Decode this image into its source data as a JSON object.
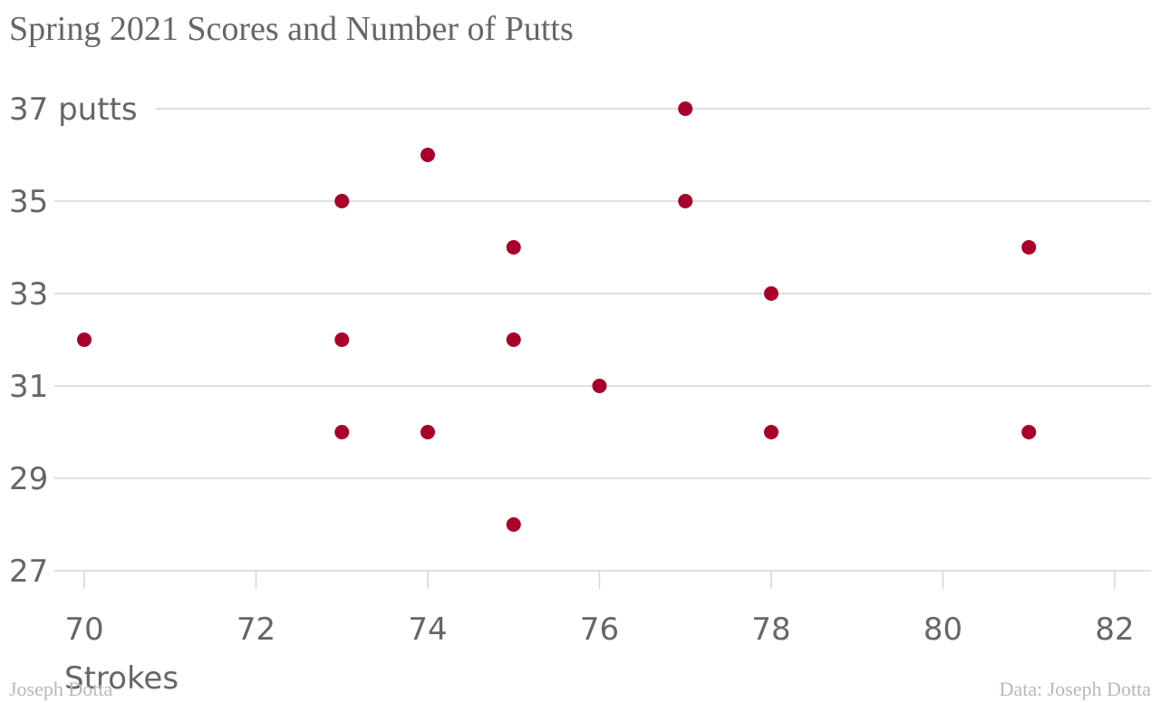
{
  "chart_data": {
    "type": "scatter",
    "title": "Spring 2021 Scores and Number of Putts",
    "xlabel": "Strokes",
    "ylabel": "putts",
    "xlim": [
      69.8,
      82.2
    ],
    "ylim": [
      27,
      37
    ],
    "xticks": [
      70,
      72,
      74,
      76,
      78,
      80,
      82
    ],
    "yticks": [
      27,
      29,
      31,
      33,
      35,
      37
    ],
    "ytick_labels": [
      "27",
      "29",
      "31",
      "33",
      "35",
      "37 putts"
    ],
    "grid": "horizontal",
    "series": [
      {
        "color": "#a8002a",
        "points": [
          {
            "x": 70,
            "y": 32
          },
          {
            "x": 73,
            "y": 35
          },
          {
            "x": 73,
            "y": 32
          },
          {
            "x": 73,
            "y": 30
          },
          {
            "x": 74,
            "y": 36
          },
          {
            "x": 74,
            "y": 30
          },
          {
            "x": 75,
            "y": 34
          },
          {
            "x": 75,
            "y": 32
          },
          {
            "x": 75,
            "y": 28
          },
          {
            "x": 76,
            "y": 31
          },
          {
            "x": 77,
            "y": 37
          },
          {
            "x": 77,
            "y": 35
          },
          {
            "x": 78,
            "y": 33
          },
          {
            "x": 78,
            "y": 30
          },
          {
            "x": 81,
            "y": 34
          },
          {
            "x": 81,
            "y": 30
          }
        ]
      }
    ]
  },
  "footer": {
    "credit": "Joseph Dotta",
    "source": "Data: Joseph Dotta"
  },
  "colors": {
    "point": "#a8002a",
    "grid": "#d6d6d6",
    "axis_text": "#666666",
    "footer_text": "#b8b8b8"
  }
}
